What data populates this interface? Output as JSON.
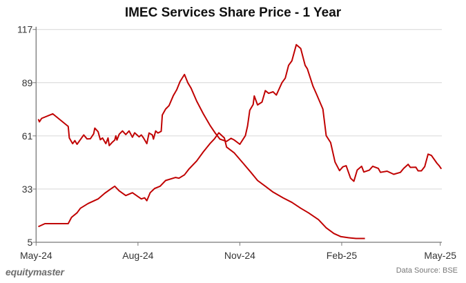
{
  "chart_data": {
    "type": "line",
    "title": "IMEC Services Share Price - 1 Year",
    "xlabel": "",
    "ylabel": "",
    "x_range": [
      "2024-05-01",
      "2025-05-01"
    ],
    "x_ticks": [
      {
        "date": "2024-05-01",
        "label": "May-24"
      },
      {
        "date": "2024-08-01",
        "label": "Aug-24"
      },
      {
        "date": "2024-11-01",
        "label": "Nov-24"
      },
      {
        "date": "2025-02-01",
        "label": "Feb-25"
      },
      {
        "date": "2025-05-01",
        "label": "May-25"
      }
    ],
    "ylim": [
      5,
      117
    ],
    "y_ticks": [
      5,
      33,
      61,
      89,
      117
    ],
    "grid": "horizontal",
    "legend": "none",
    "line_color": "#c00000",
    "series": [
      {
        "points": [
          [
            "2024-05-03",
            69.8
          ],
          [
            "2024-05-04",
            68.4
          ],
          [
            "2024-05-06",
            70.2
          ],
          [
            "2024-05-16",
            72.6
          ],
          [
            "2024-05-30",
            66.0
          ],
          [
            "2024-05-31",
            59.9
          ],
          [
            "2024-06-03",
            56.9
          ],
          [
            "2024-06-05",
            58.5
          ],
          [
            "2024-06-07",
            56.6
          ],
          [
            "2024-06-11",
            59.9
          ],
          [
            "2024-06-13",
            61.5
          ],
          [
            "2024-06-16",
            59.4
          ],
          [
            "2024-06-19",
            59.5
          ],
          [
            "2024-06-22",
            62.1
          ],
          [
            "2024-06-23",
            65.1
          ],
          [
            "2024-06-26",
            63.2
          ],
          [
            "2024-06-28",
            59.0
          ],
          [
            "2024-06-30",
            59.9
          ],
          [
            "2024-07-03",
            56.9
          ],
          [
            "2024-07-05",
            59.9
          ],
          [
            "2024-07-06",
            55.9
          ],
          [
            "2024-07-09",
            57.8
          ],
          [
            "2024-07-11",
            58.8
          ],
          [
            "2024-07-12",
            61.0
          ],
          [
            "2024-07-13",
            58.8
          ],
          [
            "2024-07-15",
            61.8
          ],
          [
            "2024-07-18",
            63.6
          ],
          [
            "2024-07-21",
            61.7
          ],
          [
            "2024-07-24",
            63.6
          ],
          [
            "2024-07-27",
            60.3
          ],
          [
            "2024-07-29",
            62.6
          ],
          [
            "2024-08-02",
            60.5
          ],
          [
            "2024-08-04",
            61.5
          ],
          [
            "2024-08-06",
            59.9
          ],
          [
            "2024-08-09",
            56.9
          ],
          [
            "2024-08-11",
            62.5
          ],
          [
            "2024-08-14",
            61.5
          ],
          [
            "2024-08-15",
            59.3
          ],
          [
            "2024-08-17",
            63.6
          ],
          [
            "2024-08-19",
            62.5
          ],
          [
            "2024-08-22",
            63.4
          ],
          [
            "2024-08-23",
            72.0
          ],
          [
            "2024-08-26",
            75.1
          ],
          [
            "2024-08-29",
            76.9
          ],
          [
            "2024-09-02",
            82.3
          ],
          [
            "2024-09-05",
            85.3
          ],
          [
            "2024-09-08",
            89.6
          ],
          [
            "2024-09-12",
            93.3
          ],
          [
            "2024-09-15",
            89.0
          ],
          [
            "2024-09-18",
            86.1
          ],
          [
            "2024-09-23",
            79.3
          ],
          [
            "2024-09-29",
            72.6
          ],
          [
            "2024-10-05",
            66.6
          ],
          [
            "2024-10-10",
            62.3
          ],
          [
            "2024-10-14",
            59.3
          ],
          [
            "2024-10-20",
            58.1
          ],
          [
            "2024-10-24",
            59.7
          ],
          [
            "2024-10-27",
            58.8
          ],
          [
            "2024-11-01",
            56.6
          ],
          [
            "2024-11-06",
            61.1
          ],
          [
            "2024-11-08",
            66.2
          ],
          [
            "2024-11-10",
            74.5
          ],
          [
            "2024-11-13",
            77.5
          ],
          [
            "2024-11-14",
            82.0
          ],
          [
            "2024-11-17",
            77.3
          ],
          [
            "2024-11-21",
            78.8
          ],
          [
            "2024-11-24",
            84.8
          ],
          [
            "2024-11-27",
            83.4
          ],
          [
            "2024-12-01",
            84.2
          ],
          [
            "2024-12-04",
            82.5
          ],
          [
            "2024-12-09",
            89.0
          ],
          [
            "2024-12-12",
            91.4
          ],
          [
            "2024-12-15",
            98.1
          ],
          [
            "2024-12-18",
            100.5
          ],
          [
            "2024-12-22",
            109.0
          ],
          [
            "2024-12-26",
            107.0
          ],
          [
            "2024-12-30",
            98.1
          ],
          [
            "2025-01-01",
            96.3
          ],
          [
            "2025-01-06",
            87.2
          ],
          [
            "2025-01-09",
            83.3
          ],
          [
            "2025-01-15",
            75.1
          ],
          [
            "2025-01-18",
            61.1
          ],
          [
            "2025-01-22",
            57.5
          ],
          [
            "2025-01-26",
            47.2
          ],
          [
            "2025-01-30",
            42.7
          ],
          [
            "2025-02-02",
            44.7
          ],
          [
            "2025-02-05",
            45.3
          ],
          [
            "2025-02-09",
            38.7
          ],
          [
            "2025-02-12",
            37.1
          ],
          [
            "2025-02-15",
            43.0
          ],
          [
            "2025-02-19",
            45.0
          ],
          [
            "2025-02-21",
            42.0
          ],
          [
            "2025-02-26",
            43.0
          ],
          [
            "2025-03-01",
            45.0
          ],
          [
            "2025-03-06",
            43.9
          ],
          [
            "2025-03-08",
            41.8
          ],
          [
            "2025-03-14",
            42.4
          ],
          [
            "2025-03-20",
            40.8
          ],
          [
            "2025-03-26",
            41.8
          ],
          [
            "2025-03-29",
            43.9
          ],
          [
            "2025-04-02",
            46.0
          ],
          [
            "2025-04-04",
            44.4
          ],
          [
            "2025-04-09",
            44.5
          ],
          [
            "2025-04-11",
            42.6
          ],
          [
            "2025-04-14",
            42.6
          ],
          [
            "2025-04-17",
            44.8
          ],
          [
            "2025-04-20",
            51.4
          ],
          [
            "2025-04-23",
            50.7
          ],
          [
            "2025-04-28",
            46.6
          ],
          [
            "2025-04-30",
            45.3
          ],
          [
            "2025-05-02",
            43.6
          ]
        ]
      },
      {
        "points": [
          [
            "2024-05-03",
            13.2
          ],
          [
            "2024-05-09",
            14.8
          ],
          [
            "2024-05-30",
            14.8
          ],
          [
            "2024-06-02",
            18.1
          ],
          [
            "2024-06-07",
            20.5
          ],
          [
            "2024-06-10",
            22.9
          ],
          [
            "2024-06-17",
            25.4
          ],
          [
            "2024-06-26",
            27.8
          ],
          [
            "2024-07-02",
            30.8
          ],
          [
            "2024-07-08",
            33.3
          ],
          [
            "2024-07-11",
            34.5
          ],
          [
            "2024-07-15",
            32.1
          ],
          [
            "2024-07-21",
            29.6
          ],
          [
            "2024-07-27",
            31.1
          ],
          [
            "2024-08-04",
            27.8
          ],
          [
            "2024-08-07",
            28.4
          ],
          [
            "2024-08-09",
            26.9
          ],
          [
            "2024-08-12",
            31.1
          ],
          [
            "2024-08-16",
            33.3
          ],
          [
            "2024-08-21",
            34.5
          ],
          [
            "2024-08-26",
            37.5
          ],
          [
            "2024-09-04",
            39.1
          ],
          [
            "2024-09-07",
            38.7
          ],
          [
            "2024-09-12",
            40.5
          ],
          [
            "2024-09-16",
            43.5
          ],
          [
            "2024-09-23",
            47.8
          ],
          [
            "2024-09-29",
            52.6
          ],
          [
            "2024-10-05",
            56.9
          ],
          [
            "2024-10-09",
            59.4
          ],
          [
            "2024-10-13",
            62.6
          ],
          [
            "2024-10-18",
            59.9
          ],
          [
            "2024-10-20",
            55.1
          ],
          [
            "2024-10-27",
            52.0
          ],
          [
            "2024-11-04",
            46.6
          ],
          [
            "2024-11-11",
            41.8
          ],
          [
            "2024-11-17",
            37.5
          ],
          [
            "2024-11-24",
            34.5
          ],
          [
            "2024-12-01",
            31.4
          ],
          [
            "2024-12-10",
            28.4
          ],
          [
            "2024-12-18",
            26.0
          ],
          [
            "2024-12-26",
            22.9
          ],
          [
            "2025-01-02",
            20.5
          ],
          [
            "2025-01-11",
            16.9
          ],
          [
            "2025-01-18",
            12.6
          ],
          [
            "2025-01-25",
            9.6
          ],
          [
            "2025-01-31",
            8.0
          ],
          [
            "2025-02-07",
            7.4
          ],
          [
            "2025-02-14",
            7.0
          ],
          [
            "2025-02-22",
            7.0
          ]
        ]
      }
    ]
  },
  "footer": {
    "logo_text": "equitymaster",
    "source": "Data Source: BSE"
  }
}
